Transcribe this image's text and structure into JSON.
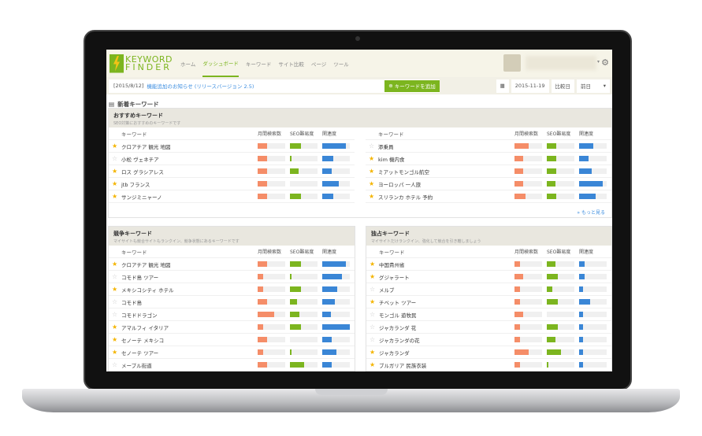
{
  "brand": {
    "line1": "KEYWORD",
    "line2": "FINDER"
  },
  "nav": [
    "ホーム",
    "ダッシュボード",
    "キーワード",
    "サイト比較",
    "ページ",
    "ツール"
  ],
  "nav_active": 1,
  "notice": {
    "date": "[2015/8/12]",
    "link": "機能追加のお知らせ (リリースバージョン 2.5)"
  },
  "add_button": "キーワードを追加",
  "date": "2015-11-19",
  "compare_label": "比較日",
  "compare_value": "前日",
  "section_title": "新着キーワード",
  "columns": [
    "キーワード",
    "月間検索数",
    "SEO難易度",
    "関連度"
  ],
  "colors": {
    "monthly": "#f58d68",
    "seo": "#7cb51f",
    "relevance": "#3a86d6",
    "accent": "#7cb51f"
  },
  "recommended": {
    "title": "おすすめキーワード",
    "subtitle": "SEO対策におすすめのキーワードです",
    "more": "» もっと見る",
    "left": [
      {
        "star": true,
        "kw": "クロアチア 観光 地図",
        "m": 0.35,
        "s": 0.4,
        "r": 0.85
      },
      {
        "star": false,
        "kw": "小松 ヴェネチア",
        "m": 0.35,
        "s": 0.05,
        "r": 0.4
      },
      {
        "star": true,
        "kw": "ロス グラシアレス",
        "m": 0.35,
        "s": 0.3,
        "r": 0.35
      },
      {
        "star": true,
        "kw": "jtb フランス",
        "m": 0.35,
        "s": 0,
        "r": 0.6
      },
      {
        "star": true,
        "kw": "サンジミニャーノ",
        "m": 0.35,
        "s": 0.4,
        "r": 0.4
      }
    ],
    "right": [
      {
        "star": false,
        "kw": "添乗員",
        "m": 0.5,
        "s": 0.35,
        "r": 0.5
      },
      {
        "star": true,
        "kw": "kim 機内食",
        "m": 0.3,
        "s": 0.35,
        "r": 0.35
      },
      {
        "star": true,
        "kw": "ミアットモンゴル航空",
        "m": 0.3,
        "s": 0.35,
        "r": 0.45
      },
      {
        "star": true,
        "kw": "ヨーロッパ 一人旅",
        "m": 0.3,
        "s": 0.3,
        "r": 0.85
      },
      {
        "star": true,
        "kw": "スリランカ ホテル 予約",
        "m": 0.4,
        "s": 0.35,
        "r": 0.6
      }
    ]
  },
  "competitive": {
    "title": "競争キーワード",
    "subtitle": "マイサイトも競合サイトもランクイン、競争状態にあるキーワードです",
    "rows": [
      {
        "star": true,
        "kw": "クロアチア 観光 地図",
        "m": 0.35,
        "s": 0.4,
        "r": 0.85
      },
      {
        "star": false,
        "kw": "コモド島 ツアー",
        "m": 0.2,
        "s": 0.05,
        "r": 0.7
      },
      {
        "star": true,
        "kw": "メキシコシティ ホテル",
        "m": 0.2,
        "s": 0.4,
        "r": 0.55
      },
      {
        "star": false,
        "kw": "コモド島",
        "m": 0.35,
        "s": 0.25,
        "r": 0.45
      },
      {
        "star": false,
        "kw": "コモドドラゴン",
        "m": 0.6,
        "s": 0.35,
        "r": 0.3
      },
      {
        "star": true,
        "kw": "アマルフィ イタリア",
        "m": 0.2,
        "s": 0.4,
        "r": 1.0
      },
      {
        "star": true,
        "kw": "セノーテ メキシコ",
        "m": 0.35,
        "s": 0,
        "r": 0.35
      },
      {
        "star": true,
        "kw": "セノーテ ツアー",
        "m": 0.2,
        "s": 0.05,
        "r": 0.5
      },
      {
        "star": false,
        "kw": "メープル街道",
        "m": 0.35,
        "s": 0.5,
        "r": 0.35
      }
    ]
  },
  "exclusive": {
    "title": "独占キーワード",
    "subtitle": "マイサイトだけランクイン、強化して競合を引き離しましょう",
    "rows": [
      {
        "star": true,
        "kw": "中国貴州省",
        "m": 0.2,
        "s": 0.3,
        "r": 0.2
      },
      {
        "star": true,
        "kw": "グジャラート",
        "m": 0.3,
        "s": 0.4,
        "r": 0.2
      },
      {
        "star": false,
        "kw": "メルブ",
        "m": 0.2,
        "s": 0.2,
        "r": 0.15
      },
      {
        "star": true,
        "kw": "チベット ツアー",
        "m": 0.2,
        "s": 0.4,
        "r": 0.4
      },
      {
        "star": false,
        "kw": "モンゴル 遊牧民",
        "m": 0.3,
        "s": 0,
        "r": 0.15
      },
      {
        "star": false,
        "kw": "ジャカランダ 花",
        "m": 0.2,
        "s": 0.4,
        "r": 0.15
      },
      {
        "star": false,
        "kw": "ジャカランダの花",
        "m": 0.2,
        "s": 0.3,
        "r": 0.15
      },
      {
        "star": true,
        "kw": "ジャカランダ",
        "m": 0.5,
        "s": 0.5,
        "r": 0.15
      },
      {
        "star": true,
        "kw": "ブルガリア 民族衣装",
        "m": 0.2,
        "s": 0.05,
        "r": 0.15
      }
    ]
  }
}
